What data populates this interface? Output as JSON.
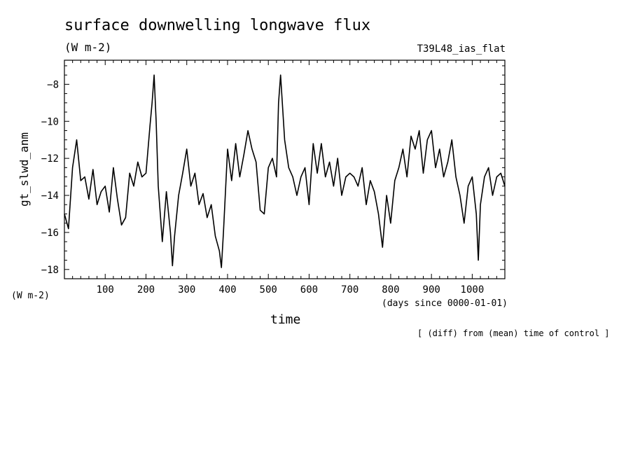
{
  "chart_data": {
    "type": "line",
    "title": "surface downwelling longwave flux",
    "units": "(W m-2)",
    "run_label": "T39L48_ias_flat",
    "ylabel": "gt_slwd_anm",
    "yunit_label": "(W m-2)",
    "xlabel": "time",
    "xunit_label": "(days since 0000-01-01)",
    "note": "[ (diff) from (mean) time of control ]",
    "xlim": [
      0,
      1080
    ],
    "ylim": [
      -18.5,
      -6.7
    ],
    "xticks": [
      100,
      200,
      300,
      400,
      500,
      600,
      700,
      800,
      900,
      1000
    ],
    "yticks": [
      -8,
      -10,
      -12,
      -14,
      -16,
      -18
    ],
    "grid": false,
    "series": [
      {
        "x": [
          0,
          10,
          20,
          30,
          40,
          50,
          60,
          70,
          80,
          90,
          100,
          110,
          120,
          130,
          140,
          150,
          160,
          170,
          180,
          190,
          200,
          205,
          210,
          215,
          220,
          225,
          230,
          240,
          250,
          260,
          265,
          270,
          280,
          290,
          300,
          310,
          320,
          330,
          340,
          350,
          360,
          370,
          380,
          385,
          390,
          400,
          410,
          420,
          430,
          440,
          450,
          460,
          470,
          480,
          490,
          500,
          510,
          520,
          525,
          530,
          540,
          550,
          560,
          570,
          580,
          590,
          600,
          610,
          620,
          630,
          640,
          650,
          660,
          670,
          680,
          690,
          700,
          710,
          720,
          730,
          740,
          750,
          760,
          770,
          780,
          790,
          800,
          810,
          820,
          830,
          840,
          850,
          860,
          870,
          880,
          890,
          900,
          910,
          920,
          930,
          940,
          950,
          960,
          970,
          980,
          990,
          1000,
          1010,
          1015,
          1020,
          1030,
          1040,
          1050,
          1060,
          1070,
          1080
        ],
        "y": [
          -15.0,
          -15.8,
          -12.5,
          -11.0,
          -13.2,
          -13.0,
          -14.2,
          -12.6,
          -14.5,
          -13.8,
          -13.5,
          -14.9,
          -12.5,
          -14.2,
          -15.6,
          -15.2,
          -12.8,
          -13.5,
          -12.2,
          -13.0,
          -12.8,
          -11.5,
          -10.2,
          -9.0,
          -7.5,
          -10.0,
          -13.5,
          -16.5,
          -13.8,
          -16.0,
          -17.8,
          -16.2,
          -14.0,
          -12.8,
          -11.5,
          -13.5,
          -12.8,
          -14.5,
          -13.9,
          -15.2,
          -14.5,
          -16.2,
          -17.0,
          -17.9,
          -16.0,
          -11.5,
          -13.2,
          -11.2,
          -13.0,
          -11.8,
          -10.5,
          -11.5,
          -12.2,
          -14.8,
          -15.0,
          -12.5,
          -12.0,
          -13.0,
          -9.0,
          -7.5,
          -11.0,
          -12.5,
          -13.0,
          -14.0,
          -13.0,
          -12.5,
          -14.5,
          -11.2,
          -12.8,
          -11.2,
          -13.0,
          -12.2,
          -13.5,
          -12.0,
          -14.0,
          -13.0,
          -12.8,
          -13.0,
          -13.5,
          -12.5,
          -14.5,
          -13.2,
          -13.8,
          -15.0,
          -16.8,
          -14.0,
          -15.5,
          -13.2,
          -12.5,
          -11.5,
          -13.0,
          -10.8,
          -11.5,
          -10.5,
          -12.8,
          -11.0,
          -10.5,
          -12.5,
          -11.5,
          -13.0,
          -12.2,
          -11.0,
          -13.0,
          -14.0,
          -15.5,
          -13.5,
          -13.0,
          -15.0,
          -17.5,
          -14.5,
          -13.0,
          -12.5,
          -14.0,
          -13.0,
          -12.8,
          -13.5
        ]
      }
    ]
  }
}
